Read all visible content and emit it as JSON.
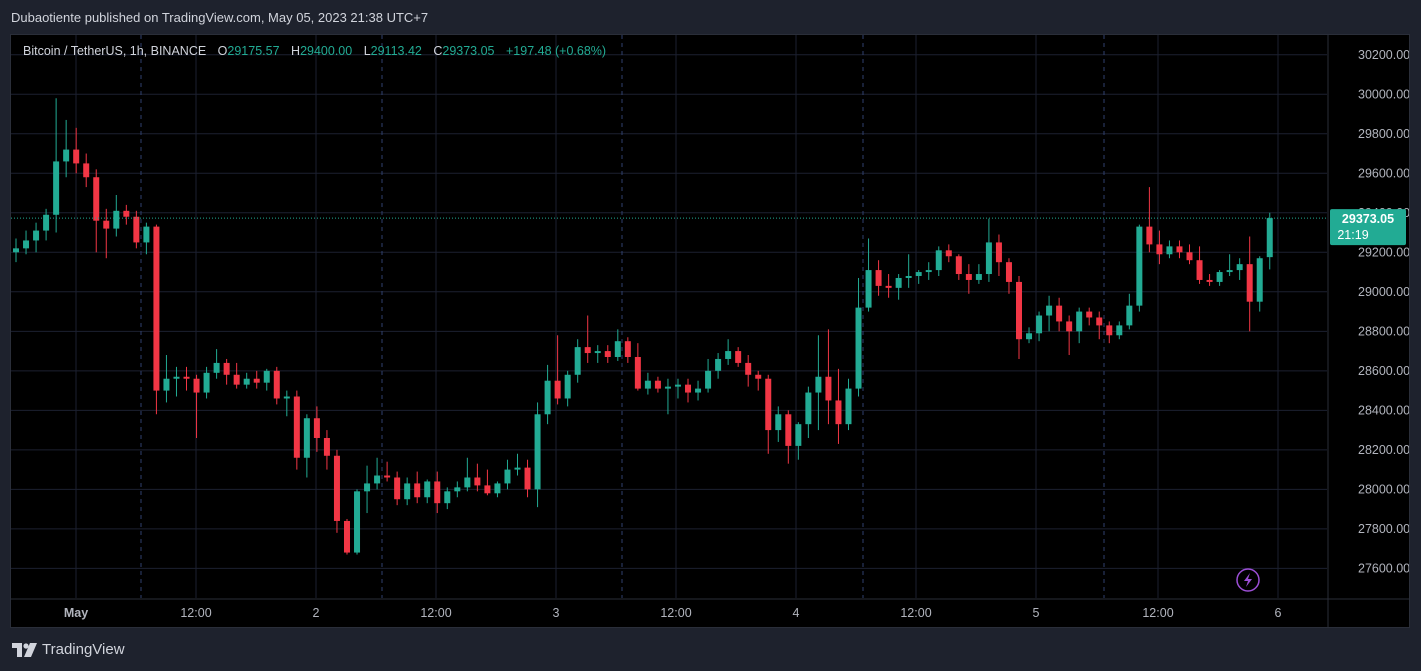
{
  "header": {
    "published_text": "Dubaotiente published on TradingView.com, May 05, 2023 21:38 UTC+7"
  },
  "legend": {
    "symbol": "Bitcoin / TetherUS, 1h, BINANCE",
    "o_label": "O",
    "o_value": "29175.57",
    "h_label": "H",
    "h_value": "29400.00",
    "l_label": "L",
    "l_value": "29113.42",
    "c_label": "C",
    "c_value": "29373.05",
    "change": "+197.48 (+0.68%)"
  },
  "footer": {
    "brand": "TradingView"
  },
  "colors": {
    "up": "#22ab94",
    "down": "#f23645",
    "background": "#000000",
    "grid": "#1c2030",
    "axis_text": "#b2b5be"
  },
  "chart_data": {
    "type": "candlestick",
    "title": "Bitcoin / TetherUS, 1h, BINANCE",
    "ylim": [
      27450,
      30300
    ],
    "y_ticks": [
      "30200.00",
      "30000.00",
      "29800.00",
      "29600.00",
      "29400.00",
      "29200.00",
      "29000.00",
      "28800.00",
      "28600.00",
      "28400.00",
      "28200.00",
      "28000.00",
      "27800.00",
      "27600.00"
    ],
    "x_ticks": [
      "May",
      "12:00",
      "2",
      "12:00",
      "3",
      "12:00",
      "4",
      "12:00",
      "5",
      "12:00",
      "6"
    ],
    "last_price": {
      "value": "29373.05",
      "countdown": "21:19"
    },
    "grid": true,
    "candles": [
      {
        "o": 29200,
        "h": 29270,
        "l": 29150,
        "c": 29220
      },
      {
        "o": 29220,
        "h": 29310,
        "l": 29190,
        "c": 29260
      },
      {
        "o": 29260,
        "h": 29350,
        "l": 29200,
        "c": 29310
      },
      {
        "o": 29310,
        "h": 29420,
        "l": 29260,
        "c": 29390
      },
      {
        "o": 29390,
        "h": 29980,
        "l": 29300,
        "c": 29660
      },
      {
        "o": 29660,
        "h": 29870,
        "l": 29580,
        "c": 29720
      },
      {
        "o": 29720,
        "h": 29830,
        "l": 29600,
        "c": 29650
      },
      {
        "o": 29650,
        "h": 29700,
        "l": 29530,
        "c": 29580
      },
      {
        "o": 29580,
        "h": 29620,
        "l": 29200,
        "c": 29360
      },
      {
        "o": 29360,
        "h": 29420,
        "l": 29170,
        "c": 29320
      },
      {
        "o": 29320,
        "h": 29490,
        "l": 29280,
        "c": 29410
      },
      {
        "o": 29410,
        "h": 29440,
        "l": 29340,
        "c": 29380
      },
      {
        "o": 29380,
        "h": 29410,
        "l": 29220,
        "c": 29250
      },
      {
        "o": 29250,
        "h": 29350,
        "l": 29190,
        "c": 29330
      },
      {
        "o": 29330,
        "h": 29340,
        "l": 28380,
        "c": 28500
      },
      {
        "o": 28500,
        "h": 28680,
        "l": 28440,
        "c": 28560
      },
      {
        "o": 28560,
        "h": 28620,
        "l": 28470,
        "c": 28570
      },
      {
        "o": 28570,
        "h": 28620,
        "l": 28500,
        "c": 28560
      },
      {
        "o": 28560,
        "h": 28580,
        "l": 28260,
        "c": 28490
      },
      {
        "o": 28490,
        "h": 28620,
        "l": 28460,
        "c": 28590
      },
      {
        "o": 28590,
        "h": 28710,
        "l": 28560,
        "c": 28640
      },
      {
        "o": 28640,
        "h": 28660,
        "l": 28530,
        "c": 28580
      },
      {
        "o": 28580,
        "h": 28640,
        "l": 28510,
        "c": 28530
      },
      {
        "o": 28530,
        "h": 28590,
        "l": 28510,
        "c": 28560
      },
      {
        "o": 28560,
        "h": 28600,
        "l": 28510,
        "c": 28540
      },
      {
        "o": 28540,
        "h": 28610,
        "l": 28500,
        "c": 28600
      },
      {
        "o": 28600,
        "h": 28620,
        "l": 28430,
        "c": 28460
      },
      {
        "o": 28460,
        "h": 28500,
        "l": 28370,
        "c": 28470
      },
      {
        "o": 28470,
        "h": 28500,
        "l": 28100,
        "c": 28160
      },
      {
        "o": 28160,
        "h": 28380,
        "l": 28060,
        "c": 28360
      },
      {
        "o": 28360,
        "h": 28420,
        "l": 28190,
        "c": 28260
      },
      {
        "o": 28260,
        "h": 28300,
        "l": 28100,
        "c": 28170
      },
      {
        "o": 28170,
        "h": 28200,
        "l": 27780,
        "c": 27840
      },
      {
        "o": 27840,
        "h": 27850,
        "l": 27670,
        "c": 27680
      },
      {
        "o": 27680,
        "h": 28000,
        "l": 27670,
        "c": 27990
      },
      {
        "o": 27990,
        "h": 28120,
        "l": 27880,
        "c": 28030
      },
      {
        "o": 28030,
        "h": 28160,
        "l": 28000,
        "c": 28070
      },
      {
        "o": 28070,
        "h": 28140,
        "l": 28040,
        "c": 28060
      },
      {
        "o": 28060,
        "h": 28090,
        "l": 27920,
        "c": 27950
      },
      {
        "o": 27950,
        "h": 28060,
        "l": 27920,
        "c": 28030
      },
      {
        "o": 28030,
        "h": 28090,
        "l": 27930,
        "c": 27960
      },
      {
        "o": 27960,
        "h": 28050,
        "l": 27930,
        "c": 28040
      },
      {
        "o": 28040,
        "h": 28090,
        "l": 27880,
        "c": 27930
      },
      {
        "o": 27930,
        "h": 28010,
        "l": 27900,
        "c": 27990
      },
      {
        "o": 27990,
        "h": 28040,
        "l": 27960,
        "c": 28010
      },
      {
        "o": 28010,
        "h": 28160,
        "l": 27990,
        "c": 28060
      },
      {
        "o": 28060,
        "h": 28130,
        "l": 27990,
        "c": 28020
      },
      {
        "o": 28020,
        "h": 28100,
        "l": 27970,
        "c": 27980
      },
      {
        "o": 27980,
        "h": 28040,
        "l": 27960,
        "c": 28030
      },
      {
        "o": 28030,
        "h": 28150,
        "l": 28000,
        "c": 28100
      },
      {
        "o": 28100,
        "h": 28180,
        "l": 28070,
        "c": 28110
      },
      {
        "o": 28110,
        "h": 28150,
        "l": 27960,
        "c": 28000
      },
      {
        "o": 28000,
        "h": 28440,
        "l": 27910,
        "c": 28380
      },
      {
        "o": 28380,
        "h": 28630,
        "l": 28330,
        "c": 28550
      },
      {
        "o": 28550,
        "h": 28780,
        "l": 28430,
        "c": 28460
      },
      {
        "o": 28460,
        "h": 28600,
        "l": 28420,
        "c": 28580
      },
      {
        "o": 28580,
        "h": 28760,
        "l": 28540,
        "c": 28720
      },
      {
        "o": 28720,
        "h": 28880,
        "l": 28640,
        "c": 28690
      },
      {
        "o": 28690,
        "h": 28730,
        "l": 28640,
        "c": 28700
      },
      {
        "o": 28700,
        "h": 28730,
        "l": 28640,
        "c": 28670
      },
      {
        "o": 28670,
        "h": 28810,
        "l": 28650,
        "c": 28750
      },
      {
        "o": 28750,
        "h": 28770,
        "l": 28640,
        "c": 28670
      },
      {
        "o": 28670,
        "h": 28740,
        "l": 28500,
        "c": 28510
      },
      {
        "o": 28510,
        "h": 28590,
        "l": 28480,
        "c": 28550
      },
      {
        "o": 28550,
        "h": 28570,
        "l": 28490,
        "c": 28510
      },
      {
        "o": 28510,
        "h": 28560,
        "l": 28380,
        "c": 28520
      },
      {
        "o": 28520,
        "h": 28560,
        "l": 28460,
        "c": 28530
      },
      {
        "o": 28530,
        "h": 28560,
        "l": 28440,
        "c": 28490
      },
      {
        "o": 28490,
        "h": 28550,
        "l": 28450,
        "c": 28510
      },
      {
        "o": 28510,
        "h": 28660,
        "l": 28490,
        "c": 28600
      },
      {
        "o": 28600,
        "h": 28690,
        "l": 28560,
        "c": 28660
      },
      {
        "o": 28660,
        "h": 28760,
        "l": 28630,
        "c": 28700
      },
      {
        "o": 28700,
        "h": 28720,
        "l": 28620,
        "c": 28640
      },
      {
        "o": 28640,
        "h": 28680,
        "l": 28520,
        "c": 28580
      },
      {
        "o": 28580,
        "h": 28600,
        "l": 28500,
        "c": 28560
      },
      {
        "o": 28560,
        "h": 28580,
        "l": 28180,
        "c": 28300
      },
      {
        "o": 28300,
        "h": 28420,
        "l": 28240,
        "c": 28380
      },
      {
        "o": 28380,
        "h": 28400,
        "l": 28130,
        "c": 28220
      },
      {
        "o": 28220,
        "h": 28340,
        "l": 28150,
        "c": 28330
      },
      {
        "o": 28330,
        "h": 28520,
        "l": 28260,
        "c": 28490
      },
      {
        "o": 28490,
        "h": 28780,
        "l": 28300,
        "c": 28570
      },
      {
        "o": 28570,
        "h": 28810,
        "l": 28330,
        "c": 28450
      },
      {
        "o": 28450,
        "h": 28610,
        "l": 28230,
        "c": 28330
      },
      {
        "o": 28330,
        "h": 28560,
        "l": 28300,
        "c": 28510
      },
      {
        "o": 28510,
        "h": 29070,
        "l": 28470,
        "c": 28920
      },
      {
        "o": 28920,
        "h": 29270,
        "l": 28900,
        "c": 29110
      },
      {
        "o": 29110,
        "h": 29160,
        "l": 28980,
        "c": 29030
      },
      {
        "o": 29030,
        "h": 29090,
        "l": 28970,
        "c": 29020
      },
      {
        "o": 29020,
        "h": 29090,
        "l": 28960,
        "c": 29070
      },
      {
        "o": 29070,
        "h": 29190,
        "l": 29020,
        "c": 29080
      },
      {
        "o": 29080,
        "h": 29110,
        "l": 29040,
        "c": 29100
      },
      {
        "o": 29100,
        "h": 29150,
        "l": 29060,
        "c": 29110
      },
      {
        "o": 29110,
        "h": 29230,
        "l": 29080,
        "c": 29210
      },
      {
        "o": 29210,
        "h": 29240,
        "l": 29150,
        "c": 29180
      },
      {
        "o": 29180,
        "h": 29190,
        "l": 29060,
        "c": 29090
      },
      {
        "o": 29090,
        "h": 29140,
        "l": 28990,
        "c": 29060
      },
      {
        "o": 29060,
        "h": 29140,
        "l": 29040,
        "c": 29090
      },
      {
        "o": 29090,
        "h": 29370,
        "l": 29050,
        "c": 29250
      },
      {
        "o": 29250,
        "h": 29290,
        "l": 29080,
        "c": 29150
      },
      {
        "o": 29150,
        "h": 29170,
        "l": 28990,
        "c": 29050
      },
      {
        "o": 29050,
        "h": 29080,
        "l": 28660,
        "c": 28760
      },
      {
        "o": 28760,
        "h": 28820,
        "l": 28740,
        "c": 28790
      },
      {
        "o": 28790,
        "h": 28900,
        "l": 28750,
        "c": 28880
      },
      {
        "o": 28880,
        "h": 28980,
        "l": 28800,
        "c": 28930
      },
      {
        "o": 28930,
        "h": 28970,
        "l": 28800,
        "c": 28850
      },
      {
        "o": 28850,
        "h": 28880,
        "l": 28680,
        "c": 28800
      },
      {
        "o": 28800,
        "h": 28920,
        "l": 28740,
        "c": 28900
      },
      {
        "o": 28900,
        "h": 28920,
        "l": 28830,
        "c": 28870
      },
      {
        "o": 28870,
        "h": 28900,
        "l": 28760,
        "c": 28830
      },
      {
        "o": 28830,
        "h": 28850,
        "l": 28740,
        "c": 28780
      },
      {
        "o": 28780,
        "h": 28850,
        "l": 28760,
        "c": 28830
      },
      {
        "o": 28830,
        "h": 28990,
        "l": 28810,
        "c": 28930
      },
      {
        "o": 28930,
        "h": 29340,
        "l": 28900,
        "c": 29330
      },
      {
        "o": 29330,
        "h": 29530,
        "l": 29200,
        "c": 29240
      },
      {
        "o": 29240,
        "h": 29310,
        "l": 29140,
        "c": 29190
      },
      {
        "o": 29190,
        "h": 29260,
        "l": 29170,
        "c": 29230
      },
      {
        "o": 29230,
        "h": 29260,
        "l": 29170,
        "c": 29200
      },
      {
        "o": 29200,
        "h": 29240,
        "l": 29140,
        "c": 29160
      },
      {
        "o": 29160,
        "h": 29230,
        "l": 29040,
        "c": 29060
      },
      {
        "o": 29060,
        "h": 29090,
        "l": 29030,
        "c": 29050
      },
      {
        "o": 29050,
        "h": 29110,
        "l": 29030,
        "c": 29100
      },
      {
        "o": 29100,
        "h": 29190,
        "l": 29080,
        "c": 29110
      },
      {
        "o": 29110,
        "h": 29170,
        "l": 29060,
        "c": 29140
      },
      {
        "o": 29140,
        "h": 29280,
        "l": 28800,
        "c": 28950
      },
      {
        "o": 28950,
        "h": 29180,
        "l": 28900,
        "c": 29170
      },
      {
        "o": 29175.57,
        "h": 29400,
        "l": 29113.42,
        "c": 29373.05
      }
    ]
  }
}
